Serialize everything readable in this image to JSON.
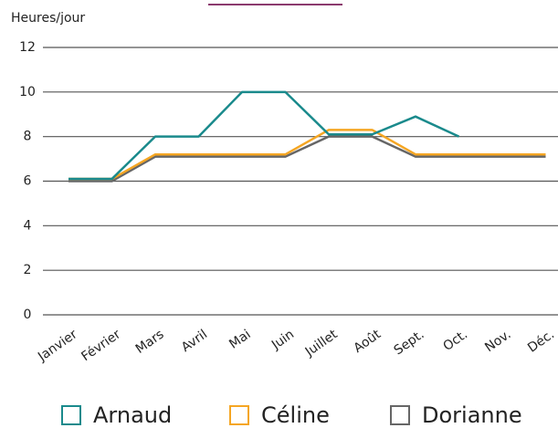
{
  "chart_data": {
    "type": "line",
    "ylabel": "Heures/jour",
    "categories": [
      "Janvier",
      "Février",
      "Mars",
      "Avril",
      "Mai",
      "Juin",
      "Juillet",
      "Août",
      "Sept.",
      "Oct.",
      "Nov.",
      "Déc."
    ],
    "series": [
      {
        "name": "Arnaud",
        "color": "#1a8a8c",
        "values": [
          6.1,
          6.1,
          8,
          8,
          10,
          10,
          8.1,
          8.1,
          8.9,
          8,
          null,
          null
        ]
      },
      {
        "name": "Céline",
        "color": "#f5a623",
        "values": [
          6.1,
          6.1,
          7.2,
          7.2,
          7.2,
          7.2,
          8.3,
          8.3,
          7.2,
          7.2,
          7.2,
          7.2
        ]
      },
      {
        "name": "Dorianne",
        "color": "#666666",
        "values": [
          6,
          6,
          7.1,
          7.1,
          7.1,
          7.1,
          8,
          8,
          7.1,
          7.1,
          7.1,
          7.1
        ]
      }
    ],
    "ylim": [
      0,
      12
    ],
    "yticks": [
      0,
      2,
      4,
      6,
      8,
      10,
      12
    ],
    "grid": true
  }
}
